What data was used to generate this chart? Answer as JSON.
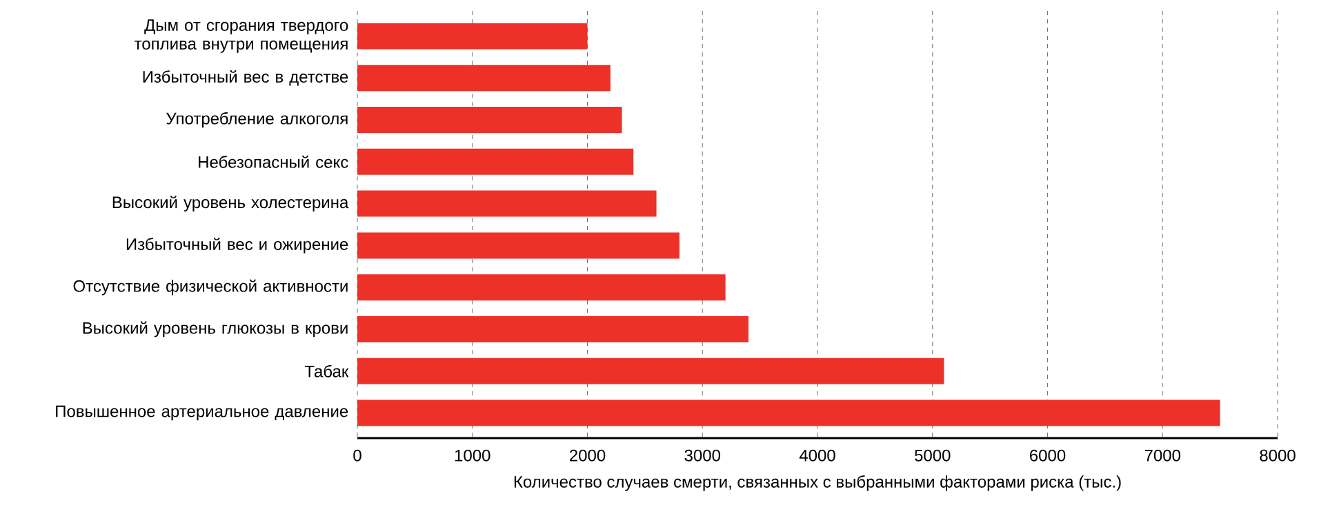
{
  "chart_data": {
    "type": "bar",
    "orientation": "horizontal",
    "xlabel": "Количество случаев смерти, связанных с выбранными факторами риска (тыс.)",
    "categories": [
      "Дым от сгорания твердого топлива внутри помещения",
      "Избыточный вес в детстве",
      "Употребление алкоголя",
      "Небезопасный секс",
      "Высокий уровень холестерина",
      "Избыточный вес и ожирение",
      "Отсутствие физической активности",
      "Высокий уровень глюкозы в крови",
      "Табак",
      "Повышенное артериальное давление"
    ],
    "values": [
      2000,
      2200,
      2300,
      2400,
      2600,
      2800,
      3200,
      3400,
      5100,
      7500
    ],
    "color": "#ee3128",
    "xlim": [
      0,
      8000
    ],
    "xticks": [
      0,
      1000,
      2000,
      3000,
      4000,
      5000,
      6000,
      7000,
      8000
    ],
    "grid": "x"
  }
}
